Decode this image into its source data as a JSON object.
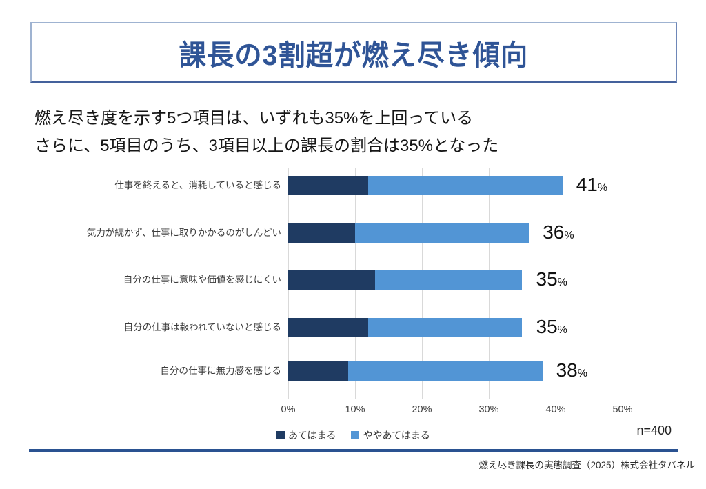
{
  "page": {
    "title": "課長の3割超が燃え尽き傾向",
    "subtitle_line1": "燃え尽き度を示す5つ項目は、いずれも35%を上回っている",
    "subtitle_line2": "さらに、5項目のうち、3項目以上の課長の割合は35%となった",
    "sample_size": "n=400",
    "footer": "燃え尽き課長の実態調査（2025）株式会社タバネル"
  },
  "colors": {
    "title_blue": "#2F5496",
    "dark_series": "#1F3B62",
    "light_series": "#5295D5",
    "divider_blue": "#2A5291",
    "gridline": "#D9D9D9"
  },
  "chart_data": {
    "type": "bar",
    "orientation": "horizontal",
    "stacked": true,
    "title": "",
    "categories": [
      "仕事を終えると、消耗していると感じる",
      "気力が続かず、仕事に取りかかるのがしんどい",
      "自分の仕事に意味や価値を感じにくい",
      "自分の仕事は報われていないと感じる",
      "自分の仕事に無力感を感じる"
    ],
    "series": [
      {
        "name": "あてはまる",
        "color_key": "dark_series",
        "values": [
          12,
          10,
          13,
          12,
          9
        ]
      },
      {
        "name": "ややあてはまる",
        "color_key": "light_series",
        "values": [
          29,
          26,
          22,
          23,
          29
        ]
      }
    ],
    "totals": [
      41,
      36,
      35,
      35,
      38
    ],
    "total_label_suffix": "%",
    "x_ticks": [
      "0%",
      "10%",
      "20%",
      "30%",
      "40%",
      "50%"
    ],
    "x_tick_values": [
      0,
      10,
      20,
      30,
      40,
      50
    ],
    "xlim": [
      0,
      50
    ],
    "grid": true,
    "legend_position": "bottom"
  }
}
